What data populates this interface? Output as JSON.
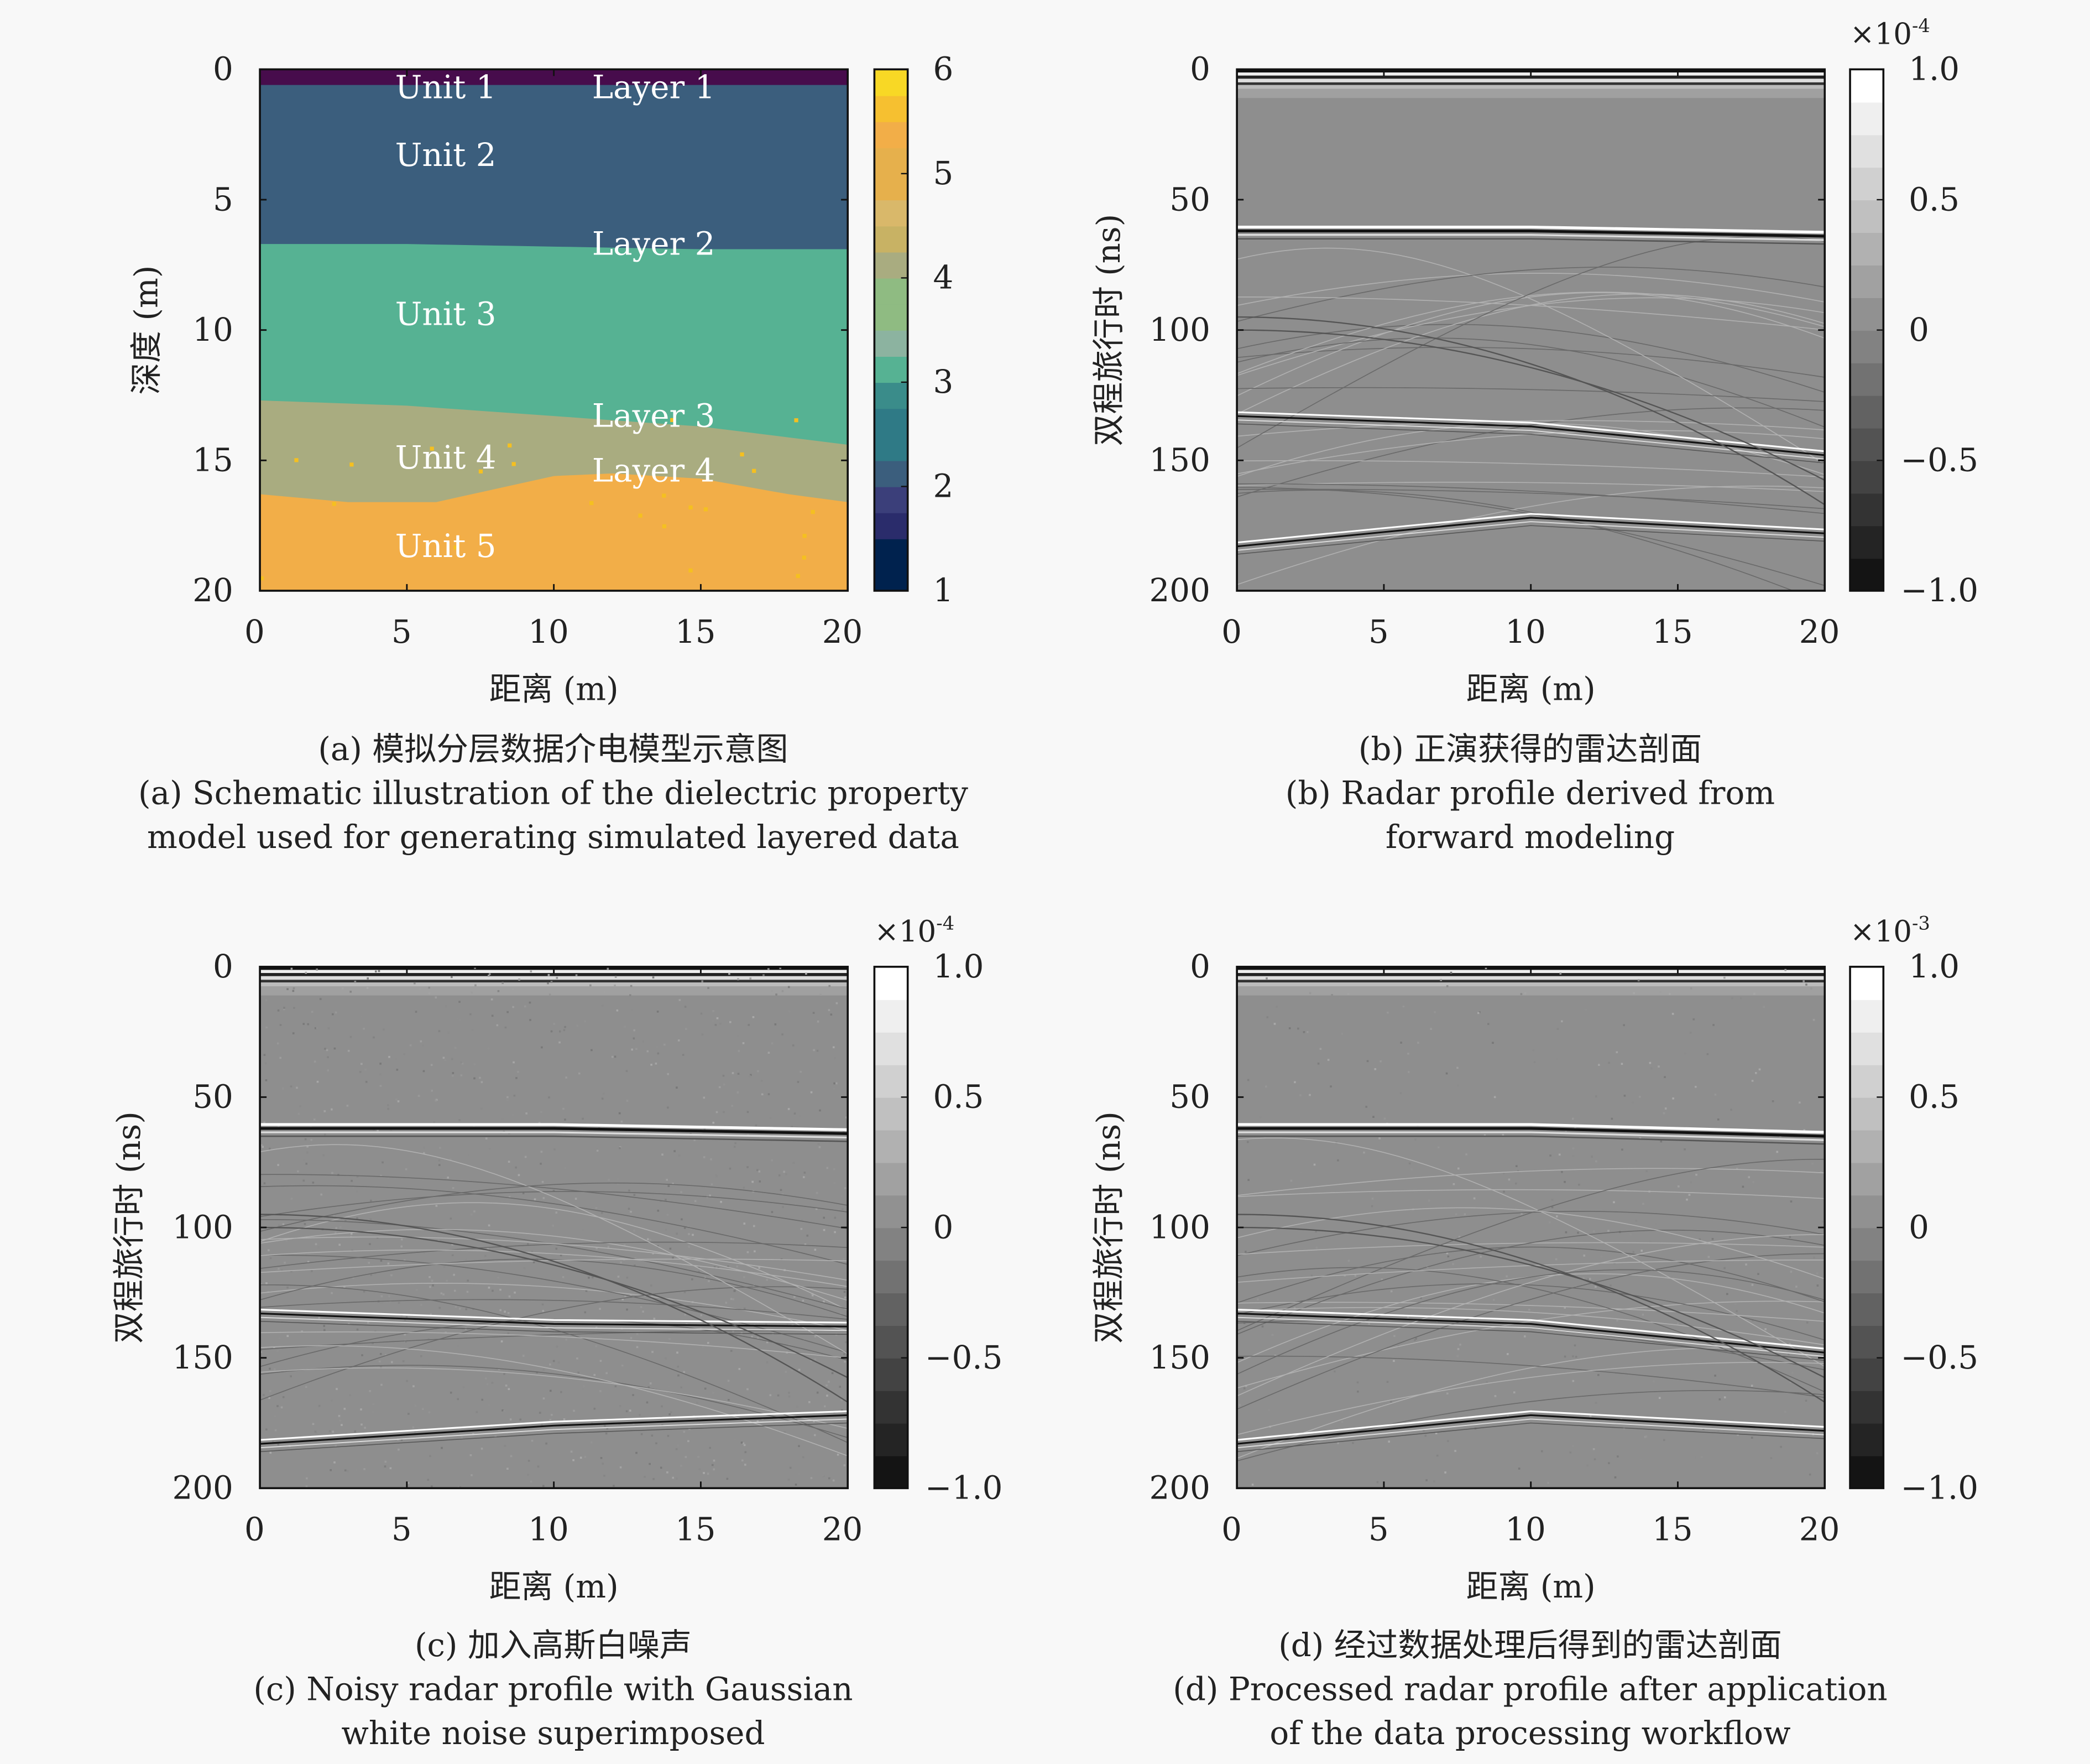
{
  "chart_data": [
    {
      "type": "heatmap",
      "panel": "a",
      "caption_cn": "(a) 模拟分层数据介电模型示意图",
      "caption_en_1": "(a) Schematic illustration of the dielectric property",
      "caption_en_2": "model used for generating simulated layered data",
      "xlabel": "距离 (m)",
      "ylabel": "深度 (m)",
      "xlim": [
        0,
        20
      ],
      "ylim": [
        0,
        20
      ],
      "y_inverted": true,
      "xticks": [
        "0",
        "5",
        "10",
        "15",
        "20"
      ],
      "yticks": [
        "0",
        "5",
        "10",
        "15",
        "20"
      ],
      "colorbar": {
        "min": 1,
        "max": 6,
        "ticks": [
          "1",
          "2",
          "3",
          "4",
          "5",
          "6"
        ],
        "colormap": "cividis-like"
      },
      "units": [
        {
          "label": "Unit 1",
          "value": 1.0,
          "color": "#470c4c"
        },
        {
          "label": "Unit 2",
          "value": 2.2,
          "color": "#3b5e7d"
        },
        {
          "label": "Unit 3",
          "value": 3.3,
          "color": "#56b293"
        },
        {
          "label": "Unit 4",
          "value": 4.4,
          "color": "#a9ac80"
        },
        {
          "label": "Unit 5",
          "value": 5.3,
          "color": "#f2ae48"
        }
      ],
      "layers": [
        {
          "label": "Layer 1",
          "x": [
            0,
            20
          ],
          "depth": [
            0.6,
            0.6
          ]
        },
        {
          "label": "Layer 2",
          "x": [
            0,
            5,
            10,
            15,
            20
          ],
          "depth": [
            6.7,
            6.7,
            6.8,
            6.9,
            6.9
          ]
        },
        {
          "label": "Layer 3",
          "x": [
            0,
            5,
            10,
            15,
            20
          ],
          "depth": [
            12.7,
            12.9,
            13.3,
            13.7,
            14.4
          ]
        },
        {
          "label": "Layer 4",
          "x": [
            0,
            3,
            6,
            10,
            12,
            15,
            18,
            20
          ],
          "depth": [
            16.3,
            16.6,
            16.6,
            15.6,
            15.5,
            15.7,
            16.3,
            16.6
          ]
        }
      ]
    },
    {
      "type": "heatmap",
      "panel": "b",
      "caption_cn": "(b) 正演获得的雷达剖面",
      "caption_en_1": "(b) Radar profile derived from",
      "caption_en_2": "forward modeling",
      "xlabel": "距离 (m)",
      "ylabel": "双程旅行时 (ns)",
      "xlim": [
        0,
        20
      ],
      "ylim": [
        0,
        200
      ],
      "y_inverted": true,
      "xticks": [
        "0",
        "5",
        "10",
        "15",
        "20"
      ],
      "yticks": [
        "0",
        "50",
        "100",
        "150",
        "200"
      ],
      "colorbar": {
        "min": -1.0,
        "max": 1.0,
        "ticks": [
          "1.0",
          "0.5",
          "0",
          "−0.5",
          "−1.0"
        ],
        "scale_base": "×10",
        "scale_exp": "-4",
        "colormap": "gray"
      },
      "noise": 0,
      "reflections_ns": [
        {
          "x": [
            0,
            10,
            20
          ],
          "t": [
            62,
            62,
            64
          ]
        },
        {
          "x": [
            0,
            10,
            20
          ],
          "t": [
            133,
            137,
            148
          ]
        },
        {
          "x": [
            0,
            10,
            20
          ],
          "t": [
            183,
            172,
            178
          ]
        }
      ]
    },
    {
      "type": "heatmap",
      "panel": "c",
      "caption_cn": "(c) 加入高斯白噪声",
      "caption_en_1": "(c) Noisy radar profile with Gaussian",
      "caption_en_2": "white noise superimposed",
      "xlabel": "距离 (m)",
      "ylabel": "双程旅行时 (ns)",
      "xlim": [
        0,
        20
      ],
      "ylim": [
        0,
        200
      ],
      "y_inverted": true,
      "xticks": [
        "0",
        "5",
        "10",
        "15",
        "20"
      ],
      "yticks": [
        "0",
        "50",
        "100",
        "150",
        "200"
      ],
      "colorbar": {
        "min": -1.0,
        "max": 1.0,
        "ticks": [
          "1.0",
          "0.5",
          "0",
          "−0.5",
          "−1.0"
        ],
        "scale_base": "×10",
        "scale_exp": "-4",
        "colormap": "gray"
      },
      "noise": 0.4,
      "reflections_ns": [
        {
          "x": [
            0,
            10,
            20
          ],
          "t": [
            62,
            62,
            64
          ]
        },
        {
          "x": [
            0,
            10,
            20
          ],
          "t": [
            133,
            137,
            138
          ]
        },
        {
          "x": [
            0,
            10,
            20
          ],
          "t": [
            183,
            176,
            172
          ]
        }
      ]
    },
    {
      "type": "heatmap",
      "panel": "d",
      "caption_cn": "(d) 经过数据处理后得到的雷达剖面",
      "caption_en_1": "(d) Processed radar profile after application",
      "caption_en_2": "of the data processing workflow",
      "xlabel": "距离 (m)",
      "ylabel": "双程旅行时 (ns)",
      "xlim": [
        0,
        20
      ],
      "ylim": [
        0,
        200
      ],
      "y_inverted": true,
      "xticks": [
        "0",
        "5",
        "10",
        "15",
        "20"
      ],
      "yticks": [
        "0",
        "50",
        "100",
        "150",
        "200"
      ],
      "colorbar": {
        "min": -1.0,
        "max": 1.0,
        "ticks": [
          "1.0",
          "0.5",
          "0",
          "−0.5",
          "−1.0"
        ],
        "scale_base": "×10",
        "scale_exp": "-3",
        "colormap": "gray"
      },
      "noise": 0.15,
      "reflections_ns": [
        {
          "x": [
            0,
            10,
            20
          ],
          "t": [
            62,
            62,
            65
          ]
        },
        {
          "x": [
            0,
            10,
            20
          ],
          "t": [
            133,
            137,
            148
          ]
        },
        {
          "x": [
            0,
            10,
            20
          ],
          "t": [
            183,
            172,
            178
          ]
        }
      ]
    }
  ]
}
